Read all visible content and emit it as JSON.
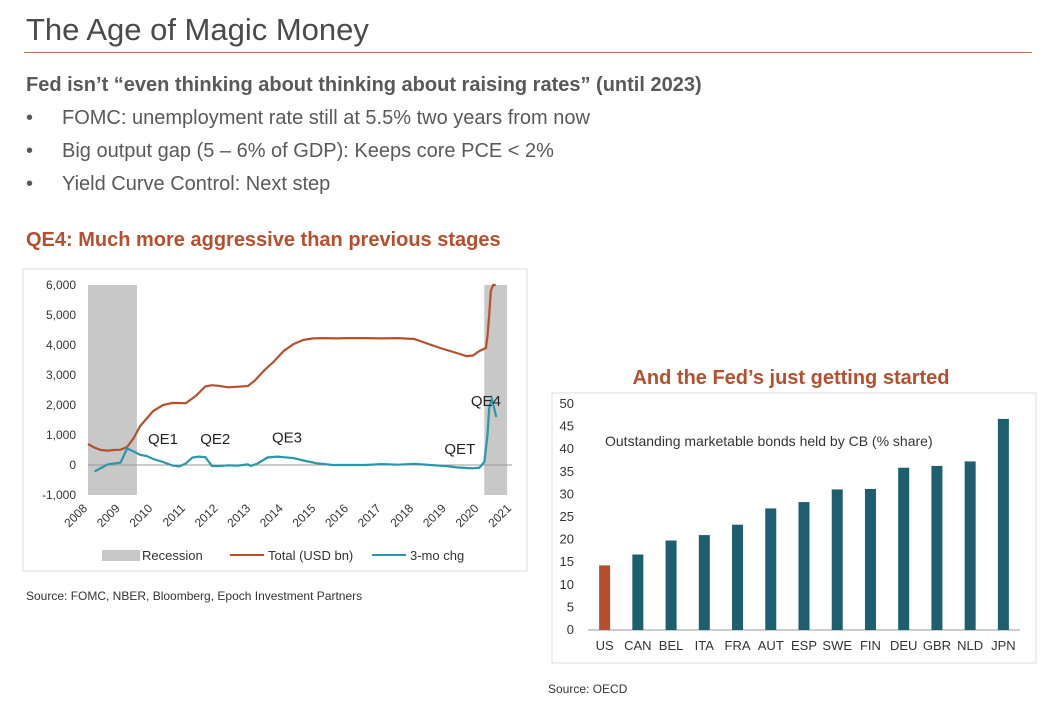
{
  "slide": {
    "title": "The Age of Magic Money",
    "subheading": "Fed isn’t “even thinking about thinking about raising rates” (until 2023)",
    "bullet_char": "•",
    "bullets": [
      "FOMC: unemployment rate still at 5.5% two years from now",
      "Big output gap (5 – 6% of GDP): Keeps core PCE < 2%",
      "Yield Curve Control: Next step"
    ],
    "section_heading": "QE4: Much more aggressive than previous stages",
    "source_left": "Source: FOMC, NBER, Bloomberg, Epoch Investment Partners",
    "source_right": "Source: OECD"
  },
  "colors": {
    "accent": "#b5502e",
    "total_line": "#b5502e",
    "chg_line": "#2a97a8",
    "recession": "#c8c8c8",
    "bar_us": "#b5502e",
    "bar_other": "#1d5f6e"
  },
  "chart_data": [
    {
      "type": "line",
      "title": "",
      "xlabel": "",
      "ylabel": "",
      "ylim": [
        -1000,
        6000
      ],
      "xlim": [
        2008,
        2021
      ],
      "y_ticks": [
        -1000,
        0,
        1000,
        2000,
        3000,
        4000,
        5000,
        6000
      ],
      "y_tick_labels": [
        "-1,000",
        "0",
        "1,000",
        "2,000",
        "3,000",
        "4,000",
        "5,000",
        "6,000"
      ],
      "x_ticks": [
        "2008",
        "2009",
        "2010",
        "2011",
        "2012",
        "2013",
        "2014",
        "2015",
        "2016",
        "2017",
        "2018",
        "2019",
        "2020",
        "2021"
      ],
      "recessions": [
        [
          2008.0,
          2009.5
        ],
        [
          2020.15,
          2020.85
        ]
      ],
      "series": [
        {
          "name": "Total (USD bn)",
          "x": [
            2008.0,
            2008.2,
            2008.4,
            2008.6,
            2008.8,
            2009.0,
            2009.2,
            2009.4,
            2009.6,
            2009.8,
            2010.0,
            2010.3,
            2010.6,
            2011.0,
            2011.3,
            2011.6,
            2011.8,
            2012.0,
            2012.3,
            2012.6,
            2012.9,
            2013.1,
            2013.4,
            2013.7,
            2014.0,
            2014.3,
            2014.6,
            2014.9,
            2015.2,
            2015.6,
            2016.0,
            2016.5,
            2017.0,
            2017.5,
            2018.0,
            2018.4,
            2018.8,
            2019.1,
            2019.4,
            2019.6,
            2019.8,
            2020.0,
            2020.2,
            2020.25,
            2020.3,
            2020.35,
            2020.42,
            2020.5
          ],
          "values": [
            700,
            580,
            500,
            480,
            500,
            510,
            600,
            900,
            1300,
            1550,
            1800,
            2000,
            2070,
            2060,
            2300,
            2620,
            2660,
            2640,
            2590,
            2610,
            2630,
            2800,
            3150,
            3450,
            3800,
            4030,
            4170,
            4220,
            4230,
            4220,
            4230,
            4230,
            4220,
            4230,
            4200,
            4050,
            3900,
            3800,
            3700,
            3630,
            3650,
            3800,
            3900,
            4300,
            5000,
            5800,
            6000,
            6000
          ]
        },
        {
          "name": "3-mo chg",
          "x": [
            2008.2,
            2008.4,
            2008.6,
            2008.8,
            2009.0,
            2009.2,
            2009.4,
            2009.6,
            2009.8,
            2010.0,
            2010.3,
            2010.6,
            2010.8,
            2011.0,
            2011.2,
            2011.4,
            2011.6,
            2011.8,
            2012.0,
            2012.3,
            2012.6,
            2012.9,
            2013.0,
            2013.2,
            2013.5,
            2013.8,
            2014.0,
            2014.3,
            2014.6,
            2015.0,
            2015.5,
            2016.0,
            2016.5,
            2017.0,
            2017.5,
            2018.0,
            2018.5,
            2019.0,
            2019.3,
            2019.6,
            2019.8,
            2020.0,
            2020.15,
            2020.25,
            2020.3,
            2020.38,
            2020.45,
            2020.52
          ],
          "values": [
            -220,
            -100,
            20,
            50,
            80,
            550,
            450,
            340,
            300,
            200,
            100,
            -20,
            -50,
            50,
            250,
            280,
            260,
            -30,
            -40,
            -10,
            -20,
            20,
            -30,
            50,
            250,
            280,
            260,
            230,
            150,
            60,
            0,
            0,
            0,
            30,
            10,
            40,
            0,
            -40,
            -80,
            -100,
            -110,
            -90,
            100,
            1000,
            1900,
            2200,
            1900,
            1600
          ]
        }
      ],
      "annotations": [
        {
          "text": "QE1",
          "x": 2010.3,
          "y": 700
        },
        {
          "text": "QE2",
          "x": 2011.9,
          "y": 700
        },
        {
          "text": "QE3",
          "x": 2014.1,
          "y": 750
        },
        {
          "text": "QET",
          "x": 2019.4,
          "y": 360
        },
        {
          "text": "QE4",
          "x": 2020.2,
          "y": 1960
        }
      ],
      "legend": [
        {
          "label": "Recession",
          "kind": "box"
        },
        {
          "label": "Total (USD bn)",
          "kind": "line"
        },
        {
          "label": "3-mo chg",
          "kind": "line"
        }
      ],
      "legend_position": "bottom"
    },
    {
      "type": "bar",
      "title": "And the Fed’s just getting started",
      "xlabel": "",
      "ylabel": "",
      "annotation": "Outstanding marketable bonds held by CB (% share)",
      "ylim": [
        0,
        50
      ],
      "y_ticks": [
        0,
        5,
        10,
        15,
        20,
        25,
        30,
        35,
        40,
        45,
        50
      ],
      "categories": [
        "US",
        "CAN",
        "BEL",
        "ITA",
        "FRA",
        "AUT",
        "ESP",
        "SWE",
        "FIN",
        "DEU",
        "GBR",
        "NLD",
        "JPN"
      ],
      "values": [
        14.3,
        16.7,
        19.8,
        21.0,
        23.3,
        26.9,
        28.3,
        31.1,
        31.2,
        35.9,
        36.3,
        37.3,
        46.7
      ],
      "highlight": [
        "US"
      ]
    }
  ]
}
